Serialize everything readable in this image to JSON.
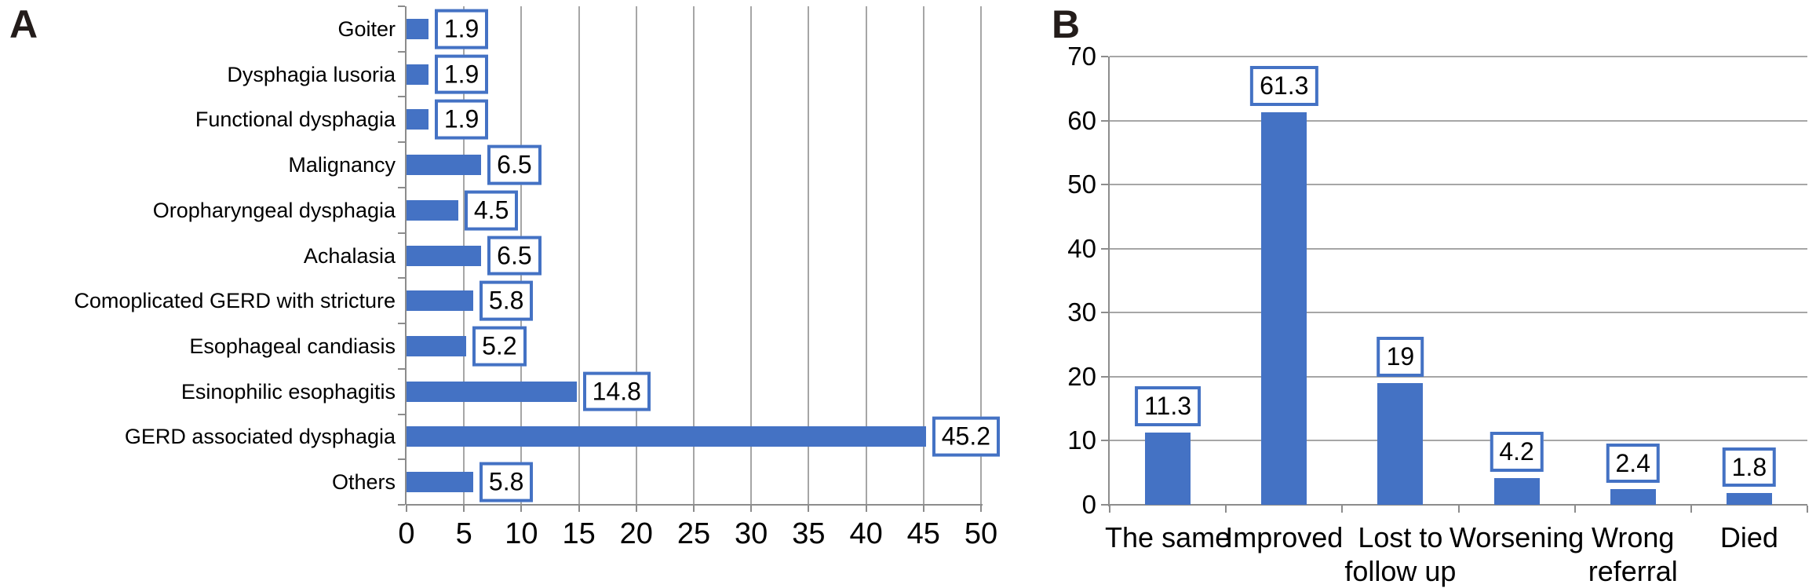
{
  "panels": [
    {
      "letter": "A"
    },
    {
      "letter": "B"
    }
  ],
  "colors": {
    "bar_blue": "#4472C4",
    "label_box_border_blue": "#4472C4",
    "label_box_fill": "#FFFFFF",
    "gridline_gray": "#A6A6A6",
    "axis_gray": "#8C8C8C",
    "panel_letter_color": "#231C1A",
    "background": "#FFFFFF",
    "text_color": "#000000"
  },
  "chart_data": [
    {
      "panel": "A",
      "type": "bar",
      "orientation": "horizontal",
      "title": "",
      "xlabel": "",
      "ylabel": "",
      "categories": [
        "Goiter",
        "Dysphagia lusoria",
        "Functional dysphagia",
        "Malignancy",
        "Oropharyngeal dysphagia",
        "Achalasia",
        "Comoplicated GERD with stricture",
        "Esophageal candiasis",
        "Esinophilic esophagitis",
        "GERD associated dysphagia",
        "Others"
      ],
      "values": [
        1.9,
        1.9,
        1.9,
        6.5,
        4.5,
        6.5,
        5.8,
        5.2,
        14.8,
        45.2,
        5.8
      ],
      "data_labels": [
        "1.9",
        "1.9",
        "1.9",
        "6.5",
        "4.5",
        "6.5",
        "5.8",
        "5.2",
        "14.8",
        "45.2",
        "5.8"
      ],
      "value_axis": {
        "min": 0,
        "max": 50,
        "step": 5,
        "tick_labels": [
          "0",
          "5",
          "10",
          "15",
          "20",
          "25",
          "30",
          "35",
          "40",
          "45",
          "50"
        ]
      },
      "grid": "vertical",
      "legend": "none",
      "bar_color": "#4472C4",
      "label_box_border": "#4472C4",
      "label_box_fill": "#FFFFFF"
    },
    {
      "panel": "B",
      "type": "bar",
      "orientation": "vertical",
      "title": "",
      "xlabel": "",
      "ylabel": "",
      "categories": [
        "The same",
        "Improved",
        "Lost to\nfollow up",
        "Worsening",
        "Wrong\nreferral",
        "Died"
      ],
      "values": [
        11.3,
        61.3,
        19,
        4.2,
        2.4,
        1.8
      ],
      "data_labels": [
        "11.3",
        "61.3",
        "19",
        "4.2",
        "2.4",
        "1.8"
      ],
      "value_axis": {
        "min": 0,
        "max": 70,
        "step": 10,
        "tick_labels": [
          "0",
          "10",
          "20",
          "30",
          "40",
          "50",
          "60",
          "70"
        ]
      },
      "grid": "horizontal",
      "legend": "none",
      "bar_color": "#4472C4",
      "label_box_border": "#4472C4",
      "label_box_fill": "#FFFFFF"
    }
  ]
}
